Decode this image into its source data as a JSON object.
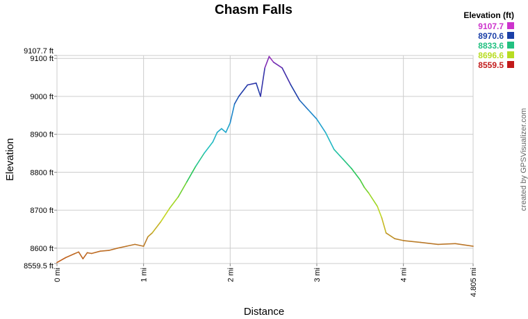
{
  "chart_data": {
    "type": "line",
    "title": "Chasm Falls",
    "xlabel": "Distance",
    "ylabel": "Elevation",
    "xlim": [
      0,
      4.805
    ],
    "ylim": [
      8559.5,
      9107.7
    ],
    "x_ticks": [
      {
        "value": 0,
        "label": "0 mi"
      },
      {
        "value": 1,
        "label": "1 mi"
      },
      {
        "value": 2,
        "label": "2 mi"
      },
      {
        "value": 3,
        "label": "3 mi"
      },
      {
        "value": 4,
        "label": "4 mi"
      },
      {
        "value": 4.805,
        "label": "4.805 mi"
      }
    ],
    "y_ticks": [
      {
        "value": 8559.5,
        "label": "8559.5 ft"
      },
      {
        "value": 8600,
        "label": "8600 ft"
      },
      {
        "value": 8700,
        "label": "8700 ft"
      },
      {
        "value": 8800,
        "label": "8800 ft"
      },
      {
        "value": 8900,
        "label": "8900 ft"
      },
      {
        "value": 9000,
        "label": "9000 ft"
      },
      {
        "value": 9100,
        "label": "9100 ft"
      },
      {
        "value": 9107.7,
        "label": "9107.7 ft"
      }
    ],
    "grid": true,
    "series": [
      {
        "color_by": "elevation",
        "x": [
          0,
          0.1,
          0.2,
          0.25,
          0.3,
          0.35,
          0.4,
          0.5,
          0.6,
          0.7,
          0.8,
          0.9,
          1.0,
          1.05,
          1.1,
          1.2,
          1.3,
          1.4,
          1.5,
          1.6,
          1.7,
          1.8,
          1.85,
          1.9,
          1.95,
          2.0,
          2.05,
          2.1,
          2.2,
          2.3,
          2.35,
          2.4,
          2.45,
          2.5,
          2.6,
          2.7,
          2.8,
          2.9,
          3.0,
          3.1,
          3.2,
          3.3,
          3.4,
          3.5,
          3.55,
          3.6,
          3.7,
          3.75,
          3.8,
          3.9,
          4.0,
          4.2,
          4.4,
          4.6,
          4.805
        ],
        "values": [
          8562,
          8575,
          8585,
          8590,
          8572,
          8588,
          8586,
          8592,
          8594,
          8600,
          8605,
          8610,
          8605,
          8630,
          8640,
          8670,
          8705,
          8735,
          8775,
          8815,
          8850,
          8880,
          8905,
          8915,
          8905,
          8930,
          8980,
          9000,
          9030,
          9035,
          9000,
          9075,
          9105,
          9090,
          9075,
          9030,
          8990,
          8965,
          8940,
          8905,
          8860,
          8835,
          8810,
          8780,
          8760,
          8745,
          8710,
          8680,
          8640,
          8625,
          8620,
          8615,
          8610,
          8612,
          8605
        ]
      }
    ],
    "legend": {
      "title": "Elevation (ft)",
      "position": "top-right",
      "entries": [
        {
          "label": "9107.7",
          "color": "#cc33cc"
        },
        {
          "label": "8970.6",
          "color": "#1a3fa8"
        },
        {
          "label": "8833.6",
          "color": "#22c080"
        },
        {
          "label": "8696.6",
          "color": "#b8dc22"
        },
        {
          "label": "8559.5",
          "color": "#c21a1a"
        }
      ]
    },
    "credit": "created by GPSVisualizer.com"
  }
}
